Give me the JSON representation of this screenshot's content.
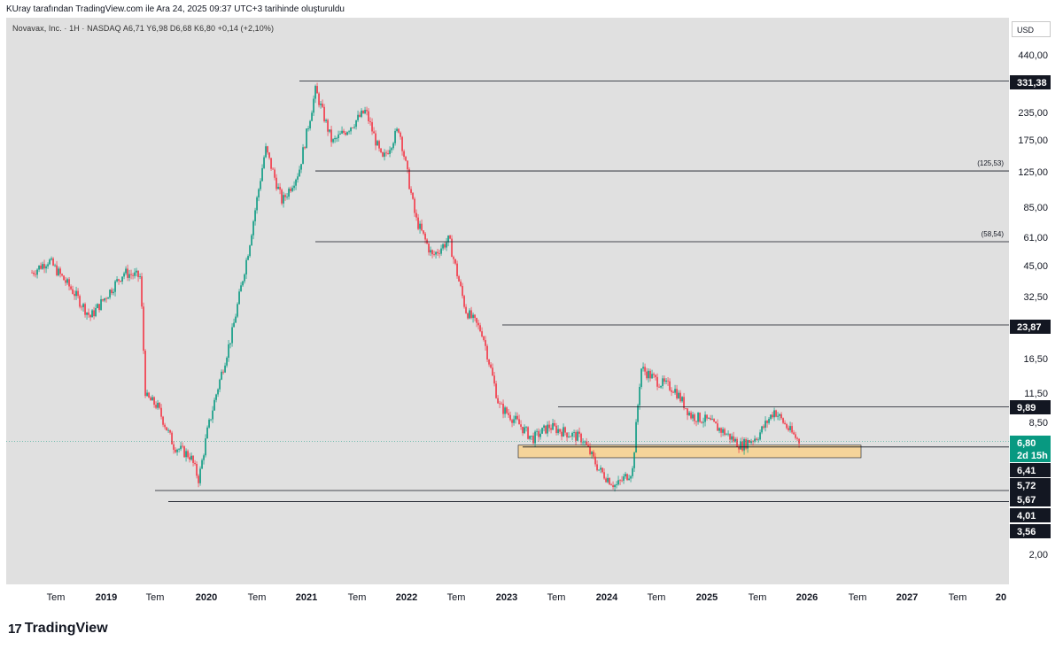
{
  "header": {
    "caption": "KUray tarafından TradingView.com ile Ara 24, 2025 09:37 UTC+3 tarihinde oluşturuldu",
    "symbol_info": "Novavax, Inc. · 1H · NASDAQ  A6,71  Y6,98  D6,68  K6,80  +0,14 (+2,10%)"
  },
  "axis": {
    "currency": "USD"
  },
  "footer": {
    "brand": "TradingView",
    "logo_icon": "tradingview-logo-icon"
  },
  "chart_data": {
    "type": "candlestick",
    "scale": "log",
    "ylim": [
      1.5,
      600
    ],
    "y_ticks": [
      "440,00",
      "235,00",
      "175,00",
      "125,00",
      "85,00",
      "61,00",
      "45,00",
      "32,50",
      "16,50",
      "11,50",
      "8,50",
      "2,00"
    ],
    "x_ticks": [
      "Tem",
      "2019",
      "Tem",
      "2020",
      "Tem",
      "2021",
      "Tem",
      "2022",
      "Tem",
      "2023",
      "Tem",
      "2024",
      "Tem",
      "2025",
      "Tem",
      "2026",
      "Tem",
      "2027",
      "Tem",
      "20"
    ],
    "price_path": [
      {
        "date": "2018-04",
        "price": 42
      },
      {
        "date": "2018-06",
        "price": 48
      },
      {
        "date": "2018-09",
        "price": 34
      },
      {
        "date": "2018-11",
        "price": 26
      },
      {
        "date": "2019-01",
        "price": 33
      },
      {
        "date": "2019-03",
        "price": 42
      },
      {
        "date": "2019-05",
        "price": 40
      },
      {
        "date": "2019-05-20",
        "price": 11
      },
      {
        "date": "2019-07",
        "price": 10
      },
      {
        "date": "2019-09",
        "price": 6.5
      },
      {
        "date": "2019-11",
        "price": 5.8
      },
      {
        "date": "2019-12",
        "price": 4.5
      },
      {
        "date": "2020-01",
        "price": 7.5
      },
      {
        "date": "2020-02",
        "price": 11
      },
      {
        "date": "2020-04",
        "price": 22
      },
      {
        "date": "2020-06",
        "price": 55
      },
      {
        "date": "2020-08",
        "price": 160
      },
      {
        "date": "2020-10",
        "price": 90
      },
      {
        "date": "2020-12",
        "price": 125
      },
      {
        "date": "2021-02",
        "price": 300
      },
      {
        "date": "2021-04",
        "price": 170
      },
      {
        "date": "2021-06",
        "price": 200
      },
      {
        "date": "2021-08",
        "price": 240
      },
      {
        "date": "2021-10",
        "price": 140
      },
      {
        "date": "2021-12",
        "price": 200
      },
      {
        "date": "2022-02",
        "price": 75
      },
      {
        "date": "2022-04",
        "price": 50
      },
      {
        "date": "2022-06",
        "price": 60
      },
      {
        "date": "2022-08",
        "price": 28
      },
      {
        "date": "2022-10",
        "price": 22
      },
      {
        "date": "2022-12",
        "price": 10
      },
      {
        "date": "2023-02",
        "price": 8.5
      },
      {
        "date": "2023-04",
        "price": 7
      },
      {
        "date": "2023-06",
        "price": 8
      },
      {
        "date": "2023-08",
        "price": 7.5
      },
      {
        "date": "2023-10",
        "price": 7
      },
      {
        "date": "2023-12",
        "price": 5
      },
      {
        "date": "2024-02",
        "price": 4.2
      },
      {
        "date": "2024-04",
        "price": 5
      },
      {
        "date": "2024-05",
        "price": 15
      },
      {
        "date": "2024-07",
        "price": 13
      },
      {
        "date": "2024-09",
        "price": 12
      },
      {
        "date": "2024-11",
        "price": 9
      },
      {
        "date": "2025-01",
        "price": 8.5
      },
      {
        "date": "2025-03",
        "price": 7.5
      },
      {
        "date": "2025-05",
        "price": 6.5
      },
      {
        "date": "2025-07",
        "price": 7.2
      },
      {
        "date": "2025-09",
        "price": 9.5
      },
      {
        "date": "2025-11",
        "price": 7.5
      },
      {
        "date": "2025-12",
        "price": 6.8
      }
    ],
    "levels": [
      {
        "price": 331.38,
        "label": "331,38",
        "kind": "line"
      },
      {
        "price": 125.53,
        "label": "(125,53)",
        "kind": "line"
      },
      {
        "price": 58.54,
        "label": "(58,54)",
        "kind": "line"
      },
      {
        "price": 23.87,
        "label": "23,87",
        "kind": "line"
      },
      {
        "price": 9.89,
        "label": "9,89",
        "kind": "line"
      },
      {
        "price": 6.41,
        "label": "6,41",
        "kind": "line"
      },
      {
        "price": 4.01,
        "label": "4,01",
        "kind": "line"
      },
      {
        "price": 3.56,
        "label": "3,56",
        "kind": "line"
      }
    ],
    "support_zone": {
      "low": 5.72,
      "high": 6.41,
      "color": "#f5d49a"
    },
    "price_labels": [
      {
        "value": "331,38",
        "color": "#131722"
      },
      {
        "value": "23,87",
        "color": "#131722"
      },
      {
        "value": "9,89",
        "color": "#131722"
      },
      {
        "value": "6,80",
        "color": "#089981"
      },
      {
        "value": "2d 15h",
        "color": "#089981"
      },
      {
        "value": "6,41",
        "color": "#131722"
      },
      {
        "value": "5,72",
        "color": "#131722"
      },
      {
        "value": "5,67",
        "color": "#131722"
      },
      {
        "value": "4,01",
        "color": "#131722"
      },
      {
        "value": "3,56",
        "color": "#131722"
      }
    ],
    "last_price": {
      "value": 6.8,
      "label": "6,80",
      "countdown": "2d 15h"
    },
    "colors": {
      "up": "#089981",
      "down": "#f23645",
      "background": "#e0e0e0",
      "level_line": "#131722"
    }
  }
}
